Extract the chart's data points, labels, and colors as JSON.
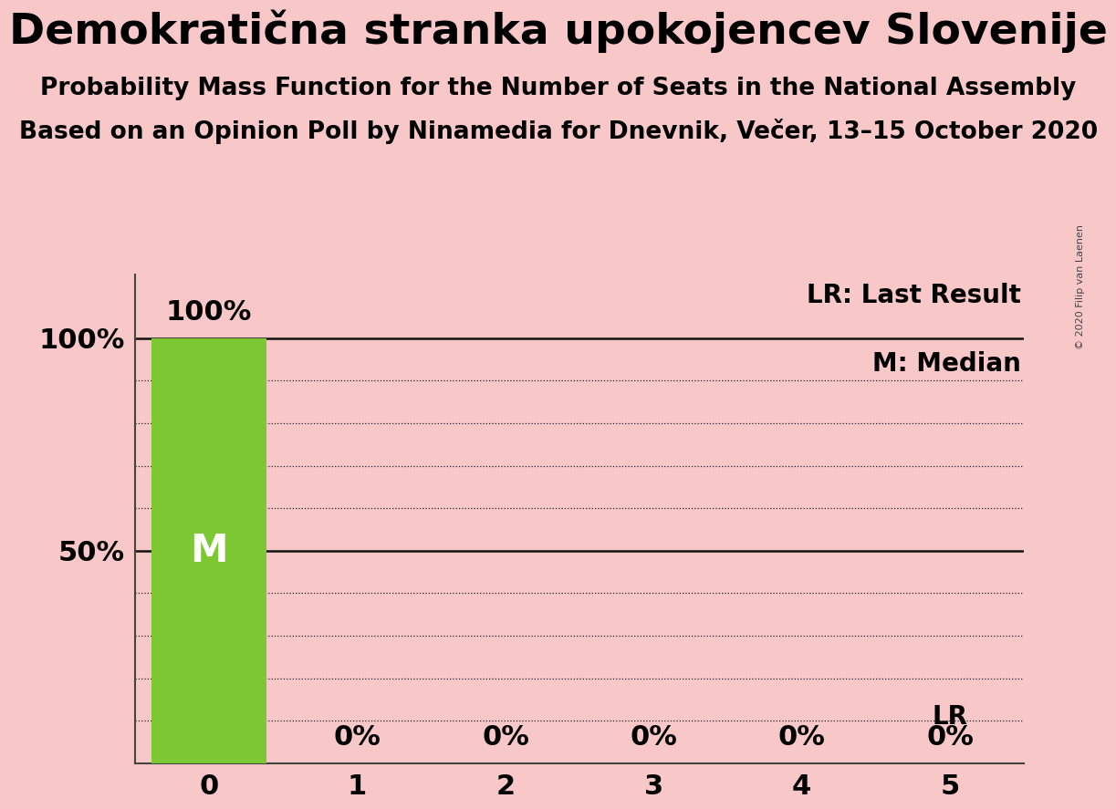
{
  "title": "Demokratična stranka upokojencev Slovenije",
  "subtitle1": "Probability Mass Function for the Number of Seats in the National Assembly",
  "subtitle2": "Based on an Opinion Poll by Ninamedia for Dnevnik, Večer, 13–15 October 2020",
  "copyright": "© 2020 Filip van Laenen",
  "x_values": [
    0,
    1,
    2,
    3,
    4,
    5
  ],
  "y_values": [
    100,
    0,
    0,
    0,
    0,
    0
  ],
  "bar_color": "#7dc832",
  "bar_width": 0.78,
  "background_color": "#f8c8c8",
  "last_result_value": 5,
  "ylabel_100": "100%",
  "ylabel_50": "50%",
  "bar_labels": [
    "100%",
    "0%",
    "0%",
    "0%",
    "0%",
    "0%"
  ],
  "legend_lr": "LR: Last Result",
  "legend_m": "M: Median",
  "lr_label": "LR",
  "m_label": "M",
  "xlim": [
    -0.5,
    5.5
  ],
  "ylim": [
    0,
    100
  ],
  "title_fontsize": 34,
  "subtitle_fontsize": 19,
  "tick_fontsize": 22,
  "bar_label_fontsize": 22,
  "legend_fontsize": 20,
  "m_fontsize": 30,
  "lr_fontsize": 20,
  "solid_lines": [
    50,
    100
  ],
  "dotted_lines": [
    10,
    20,
    30,
    40,
    60,
    70,
    80,
    90
  ]
}
